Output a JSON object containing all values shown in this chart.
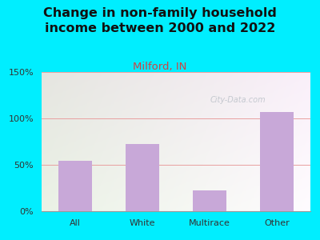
{
  "title": "Change in non-family household\nincome between 2000 and 2022",
  "subtitle": "Milford, IN",
  "categories": [
    "All",
    "White",
    "Multirace",
    "Other"
  ],
  "values": [
    54,
    72,
    22,
    107
  ],
  "bar_color": "#c8a8d8",
  "title_fontsize": 11.5,
  "subtitle_fontsize": 9.5,
  "subtitle_color": "#cc4444",
  "title_color": "#111111",
  "ylim": [
    0,
    150
  ],
  "yticks": [
    0,
    50,
    100,
    150
  ],
  "ytick_labels": [
    "0%",
    "50%",
    "100%",
    "150%"
  ],
  "background_outer": "#00eeff",
  "watermark": "City-Data.com",
  "grid_color": "#e8a0a0",
  "tick_color": "#333333"
}
